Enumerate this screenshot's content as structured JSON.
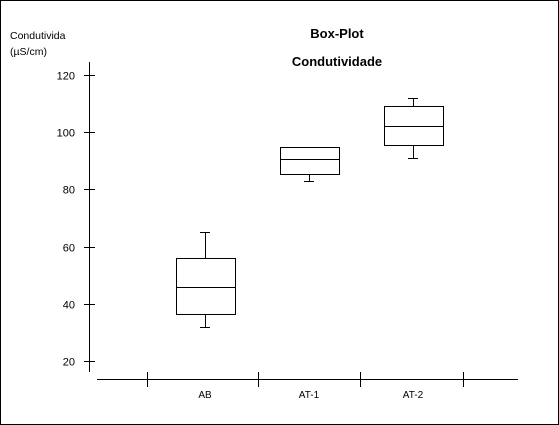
{
  "chart_data": {
    "type": "box",
    "title": "Box-Plot",
    "subtitle": "Condutividade",
    "ylabel": [
      "Condutivida",
      "(µS/cm)"
    ],
    "xlabel": "",
    "ylim": [
      14,
      128
    ],
    "yticks": [
      20,
      40,
      60,
      80,
      100,
      120
    ],
    "categories": [
      "AB",
      "AT-1",
      "AT-2"
    ],
    "boxes": [
      {
        "category": "AB",
        "min": 32,
        "q1": 36.5,
        "median": 46,
        "q3": 56,
        "max": 65
      },
      {
        "category": "AT-1",
        "min": 83,
        "q1": 85.5,
        "median": 90.5,
        "q3": 95,
        "max": 95
      },
      {
        "category": "AT-2",
        "min": 91,
        "q1": 95.5,
        "median": 102,
        "q3": 109,
        "max": 112
      }
    ],
    "grid": false,
    "legend": "none"
  },
  "colors": {
    "background": "#ffffff",
    "ink": "#000000",
    "frame": "#a0a0a0"
  }
}
